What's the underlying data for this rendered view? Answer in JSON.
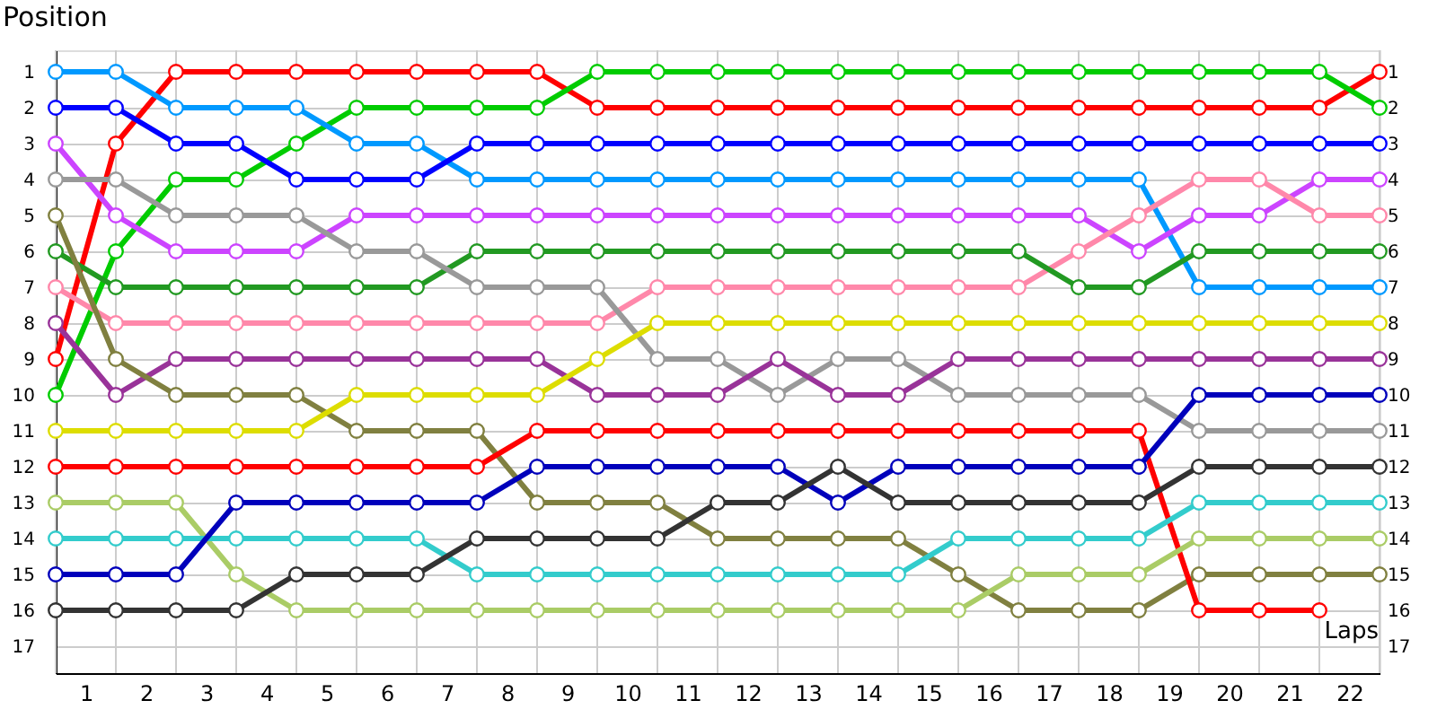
{
  "chart_data": {
    "type": "line",
    "ylabel": "Position",
    "xlabel": "Laps",
    "x": [
      0,
      1,
      2,
      3,
      4,
      5,
      6,
      7,
      8,
      9,
      10,
      11,
      12,
      13,
      14,
      15,
      16,
      17,
      18,
      19,
      20,
      21,
      22
    ],
    "xlim": [
      0,
      22
    ],
    "xticks": [
      {
        "value": 0.5,
        "label": "1"
      },
      {
        "value": 1.5,
        "label": "2"
      },
      {
        "value": 2.5,
        "label": "3"
      },
      {
        "value": 3.5,
        "label": "4"
      },
      {
        "value": 4.5,
        "label": "5"
      },
      {
        "value": 5.5,
        "label": "6"
      },
      {
        "value": 6.5,
        "label": "7"
      },
      {
        "value": 7.5,
        "label": "8"
      },
      {
        "value": 8.5,
        "label": "9"
      },
      {
        "value": 9.5,
        "label": "10"
      },
      {
        "value": 10.5,
        "label": "11"
      },
      {
        "value": 11.5,
        "label": "12"
      },
      {
        "value": 12.5,
        "label": "13"
      },
      {
        "value": 13.5,
        "label": "14"
      },
      {
        "value": 14.5,
        "label": "15"
      },
      {
        "value": 15.5,
        "label": "16"
      },
      {
        "value": 16.5,
        "label": "17"
      },
      {
        "value": 17.5,
        "label": "18"
      },
      {
        "value": 18.5,
        "label": "19"
      },
      {
        "value": 19.5,
        "label": "20"
      },
      {
        "value": 20.5,
        "label": "21"
      },
      {
        "value": 21.5,
        "label": "22"
      }
    ],
    "ylim": [
      17.75,
      0.4
    ],
    "yticks": [
      1,
      2,
      3,
      4,
      5,
      6,
      7,
      8,
      9,
      10,
      11,
      12,
      13,
      14,
      15,
      16,
      17
    ],
    "y2lim": [
      17.75,
      0.4
    ],
    "y2ticks": [
      1,
      2,
      3,
      4,
      5,
      6,
      7,
      8,
      9,
      10,
      11,
      12,
      13,
      14,
      15,
      16,
      17
    ],
    "grid": true,
    "legend": false,
    "marker": "circle",
    "line_style": "solid",
    "series": [
      {
        "color": "#ff0000",
        "values": [
          9,
          3,
          1,
          1,
          1,
          1,
          1,
          1,
          1,
          2,
          2,
          2,
          2,
          2,
          2,
          2,
          2,
          2,
          2,
          2,
          2,
          2,
          1
        ]
      },
      {
        "color": "#00cc00",
        "values": [
          10,
          6,
          4,
          4,
          3,
          2,
          2,
          2,
          2,
          1,
          1,
          1,
          1,
          1,
          1,
          1,
          1,
          1,
          1,
          1,
          1,
          1,
          2
        ]
      },
      {
        "color": "#0099ff",
        "values": [
          1,
          1,
          2,
          2,
          2,
          3,
          3,
          4,
          4,
          4,
          4,
          4,
          4,
          4,
          4,
          4,
          4,
          4,
          4,
          7,
          7,
          7,
          7
        ]
      },
      {
        "color": "#0000ff",
        "values": [
          2,
          2,
          3,
          3,
          4,
          4,
          4,
          3,
          3,
          3,
          3,
          3,
          3,
          3,
          3,
          3,
          3,
          3,
          3,
          3,
          3,
          3,
          3
        ]
      },
      {
        "color": "#cc44ff",
        "values": [
          3,
          5,
          6,
          6,
          6,
          5,
          5,
          5,
          5,
          5,
          5,
          5,
          5,
          5,
          5,
          5,
          5,
          5,
          6,
          5,
          5,
          4,
          4
        ]
      },
      {
        "color": "#ff88aa",
        "values": [
          7,
          8,
          8,
          8,
          8,
          8,
          8,
          8,
          8,
          8,
          7,
          7,
          7,
          7,
          7,
          7,
          7,
          6,
          5,
          4,
          4,
          5,
          5
        ]
      },
      {
        "color": "#229922",
        "values": [
          6,
          7,
          7,
          7,
          7,
          7,
          7,
          6,
          6,
          6,
          6,
          6,
          6,
          6,
          6,
          6,
          6,
          7,
          7,
          6,
          6,
          6,
          6
        ]
      },
      {
        "color": "#999999",
        "values": [
          4,
          4,
          5,
          5,
          5,
          6,
          6,
          7,
          7,
          7,
          9,
          9,
          10,
          9,
          9,
          10,
          10,
          10,
          10,
          11,
          11,
          11,
          11
        ]
      },
      {
        "color": "#993399",
        "values": [
          8,
          10,
          9,
          9,
          9,
          9,
          9,
          9,
          9,
          10,
          10,
          10,
          9,
          10,
          10,
          9,
          9,
          9,
          9,
          9,
          9,
          9,
          9
        ]
      },
      {
        "color": "#808040",
        "values": [
          5,
          9,
          10,
          10,
          10,
          11,
          11,
          11,
          13,
          13,
          13,
          14,
          14,
          14,
          14,
          15,
          16,
          16,
          16,
          15,
          15,
          15,
          15
        ]
      },
      {
        "color": "#dddd00",
        "values": [
          11,
          11,
          11,
          11,
          11,
          10,
          10,
          10,
          10,
          9,
          8,
          8,
          8,
          8,
          8,
          8,
          8,
          8,
          8,
          8,
          8,
          8,
          8
        ]
      },
      {
        "color": "#ff0000",
        "values": [
          12,
          12,
          12,
          12,
          12,
          12,
          12,
          12,
          11,
          11,
          11,
          11,
          11,
          11,
          11,
          11,
          11,
          11,
          11,
          16,
          16,
          16,
          null
        ]
      },
      {
        "color": "#aacc66",
        "values": [
          13,
          13,
          13,
          15,
          16,
          16,
          16,
          16,
          16,
          16,
          16,
          16,
          16,
          16,
          16,
          16,
          15,
          15,
          15,
          14,
          14,
          14,
          14
        ]
      },
      {
        "color": "#33cccc",
        "values": [
          14,
          14,
          14,
          14,
          14,
          14,
          14,
          15,
          15,
          15,
          15,
          15,
          15,
          15,
          15,
          14,
          14,
          14,
          14,
          13,
          13,
          13,
          13
        ]
      },
      {
        "color": "#0000bb",
        "values": [
          15,
          15,
          15,
          13,
          13,
          13,
          13,
          13,
          12,
          12,
          12,
          12,
          12,
          13,
          12,
          12,
          12,
          12,
          12,
          10,
          10,
          10,
          10
        ]
      },
      {
        "color": "#333333",
        "values": [
          16,
          16,
          16,
          16,
          15,
          15,
          15,
          14,
          14,
          14,
          14,
          13,
          13,
          12,
          13,
          13,
          13,
          13,
          13,
          12,
          12,
          12,
          12
        ]
      }
    ]
  }
}
